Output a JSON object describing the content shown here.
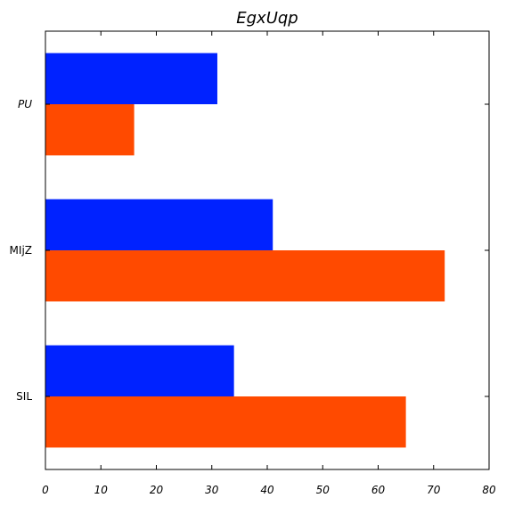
{
  "chart_data": {
    "type": "bar",
    "orientation": "horizontal",
    "title": "EgxUqp",
    "xlabel": "",
    "ylabel": "",
    "categories": [
      "PU",
      "MIjZ",
      "SIL"
    ],
    "category_italic": [
      true,
      false,
      false
    ],
    "series": [
      {
        "color": "#0022ff",
        "values": [
          31,
          41,
          34
        ]
      },
      {
        "color": "#ff4a00",
        "values": [
          16,
          72,
          65
        ]
      }
    ],
    "xlim": [
      0,
      80
    ],
    "xticks": [
      0,
      10,
      20,
      30,
      40,
      50,
      60,
      70,
      80
    ],
    "grid": false,
    "legend": "none"
  }
}
